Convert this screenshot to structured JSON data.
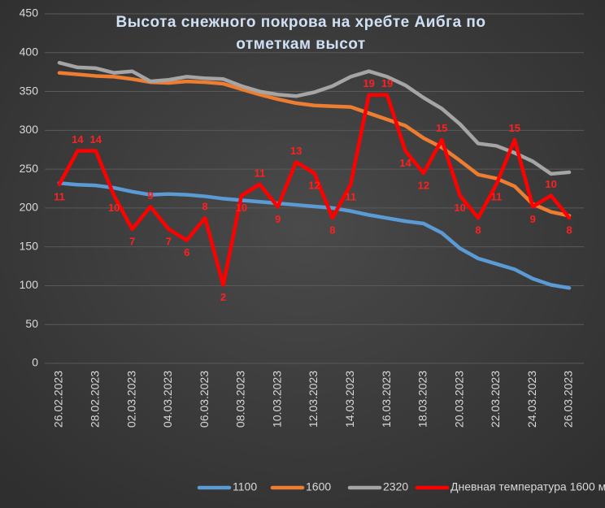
{
  "chart_data": {
    "type": "line",
    "title": [
      "Высота снежного покрова на хребте Аибга по",
      "отметкам высот"
    ],
    "categories": [
      "26.02.2023",
      null,
      "28.02.2023",
      null,
      "02.03.2023",
      null,
      "04.03.2023",
      null,
      "06.03.2023",
      null,
      "08.03.2023",
      null,
      "10.03.2023",
      null,
      "12.03.2023",
      null,
      "14.03.2023",
      null,
      "16.03.2023",
      null,
      "18.03.2023",
      null,
      "20.03.2023",
      null,
      "22.03.2023",
      null,
      "24.03.2023",
      null,
      "26.03.2023"
    ],
    "ylim": [
      0,
      450
    ],
    "yticks": [
      0,
      50,
      100,
      150,
      200,
      250,
      300,
      350,
      400,
      450
    ],
    "y2lim": [
      -5,
      26.25
    ],
    "grid": true,
    "legend": "bottom",
    "series": [
      {
        "name": "1100",
        "color": "#5b9bd5",
        "values": [
          232,
          230,
          229,
          226,
          221,
          217,
          218,
          217,
          215,
          212,
          210,
          208,
          206,
          204,
          202,
          200,
          196,
          191,
          187,
          183,
          180,
          168,
          148,
          135,
          128,
          121,
          109,
          101,
          97
        ]
      },
      {
        "name": "1600",
        "color": "#ed7d31",
        "values": [
          374,
          372,
          370,
          369,
          366,
          362,
          361,
          363,
          362,
          360,
          353,
          346,
          340,
          335,
          332,
          331,
          330,
          322,
          314,
          306,
          290,
          278,
          261,
          243,
          238,
          228,
          205,
          195,
          190
        ]
      },
      {
        "name": "2320",
        "color": "#a5a5a5",
        "values": [
          387,
          381,
          380,
          374,
          376,
          363,
          365,
          369,
          367,
          366,
          357,
          350,
          346,
          344,
          349,
          357,
          369,
          376,
          369,
          358,
          342,
          328,
          308,
          283,
          280,
          271,
          260,
          244,
          246
        ]
      },
      {
        "name": "Дневная температура 1600 м",
        "color": "#ff0000",
        "axis": "y2",
        "data_labels": true,
        "values": [
          11,
          14,
          14,
          10,
          7,
          9,
          7,
          6,
          8,
          2,
          10,
          11,
          9,
          13,
          12,
          8,
          11,
          19,
          19,
          14,
          12,
          15,
          10,
          8,
          11,
          15,
          9,
          10,
          8
        ]
      }
    ]
  }
}
